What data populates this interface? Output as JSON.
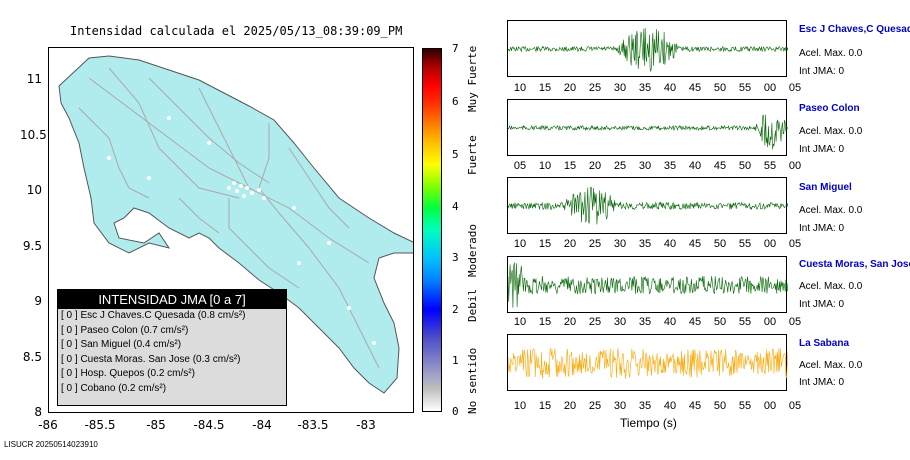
{
  "map": {
    "title": "Intensidad calculada el 2025/05/13_08:39:09_PM",
    "y_ticks": [
      "11",
      "10.5",
      "10",
      "9.5",
      "9",
      "8.5",
      "8"
    ],
    "x_ticks": [
      "-86",
      "-85.5",
      "-85",
      "-84.5",
      "-84",
      "-83.5",
      "-83"
    ],
    "land_color": "#b0eced",
    "road_color": "#a9a9a9"
  },
  "legend": {
    "title": "INTENSIDAD JMA [0 a 7]",
    "rows": [
      {
        "text": "[ 0 ]  Esc J Chaves.C Quesada (0.8 cm/s²)"
      },
      {
        "text": "[ 0 ]  Paseo Colon (0.7 cm/s²)"
      },
      {
        "text": "[ 0 ]  San Miguel (0.4 cm/s²)"
      },
      {
        "text": "[ 0 ]  Cuesta Moras. San Jose (0.3 cm/s²)"
      },
      {
        "text": "[ 0 ]  Hosp. Quepos (0.2 cm/s²)"
      },
      {
        "text": "[ 0 ]  Cobano (0.2 cm/s²)"
      }
    ]
  },
  "colorbar": {
    "ticks": [
      "7",
      "6",
      "5",
      "4",
      "3",
      "2",
      "1",
      "0"
    ],
    "labels": [
      "Muy Fuerte",
      "Fuerte",
      "Moderado",
      "Debil",
      "No sentido"
    ]
  },
  "stations": [
    {
      "name": "Esc J Chaves,C Quesada",
      "accel": "Acel. Max. 0.0",
      "jma": "Int JMA: 0",
      "color": "#006400",
      "ticks": [
        "10",
        "15",
        "20",
        "25",
        "30",
        "35",
        "40",
        "45",
        "50",
        "55",
        "00",
        "05"
      ]
    },
    {
      "name": "Paseo Colon",
      "accel": "Acel. Max. 0.0",
      "jma": "Int JMA: 0",
      "color": "#006400",
      "ticks": [
        "05",
        "10",
        "15",
        "20",
        "25",
        "30",
        "35",
        "40",
        "45",
        "50",
        "55",
        "00"
      ]
    },
    {
      "name": "San Miguel",
      "accel": "Acel. Max. 0.0",
      "jma": "Int JMA: 0",
      "color": "#006400",
      "ticks": [
        "10",
        "15",
        "20",
        "25",
        "30",
        "35",
        "40",
        "45",
        "50",
        "55",
        "00",
        "05"
      ]
    },
    {
      "name": "Cuesta Moras, San Jose",
      "accel": "Acel. Max. 0.0",
      "jma": "Int JMA: 0",
      "color": "#006400",
      "ticks": [
        "10",
        "15",
        "20",
        "25",
        "30",
        "35",
        "40",
        "45",
        "50",
        "55",
        "00",
        "05"
      ]
    },
    {
      "name": "La Sabana",
      "accel": "Acel. Max. 0.0",
      "jma": "Int JMA: 0",
      "color": "#ffa500",
      "ticks": [
        "10",
        "15",
        "20",
        "25",
        "30",
        "35",
        "40",
        "45",
        "50",
        "55",
        "00",
        "05"
      ]
    }
  ],
  "time_axis_label": "Tiempo (s)",
  "footer": "LISUCR 20250514023910"
}
